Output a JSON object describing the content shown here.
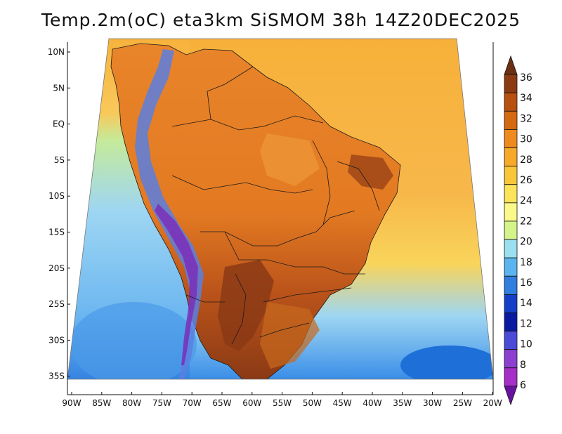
{
  "title": "Temp.2m(oC) eta3km SiSMOM 38h 14Z20DEC2025",
  "lat_labels": [
    "10N",
    "5N",
    "EQ",
    "5S",
    "10S",
    "15S",
    "20S",
    "25S",
    "30S",
    "35S"
  ],
  "lon_labels": [
    "90W",
    "85W",
    "80W",
    "75W",
    "70W",
    "65W",
    "60W",
    "55W",
    "50W",
    "45W",
    "40W",
    "35W",
    "30W",
    "25W",
    "20W"
  ],
  "colorbar": {
    "labels": [
      "36",
      "34",
      "32",
      "30",
      "28",
      "26",
      "24",
      "22",
      "20",
      "18",
      "16",
      "14",
      "12",
      "10",
      "8",
      "6"
    ],
    "colors": [
      "#6b2f12",
      "#8b3a12",
      "#b8500f",
      "#d4690f",
      "#ee8a1e",
      "#f7a92a",
      "#f9c63a",
      "#fbe35a",
      "#fbf98a",
      "#d4f48a",
      "#9be0f0",
      "#5ab4ef",
      "#2f7ee0",
      "#1440c8",
      "#0a1aa0",
      "#4b4bd8",
      "#8c3fd0",
      "#a52fc8",
      "#6a12a0"
    ]
  },
  "legend": {
    "ocean_north": "#f7b13a",
    "ocean_south": "#9ed6f3"
  }
}
